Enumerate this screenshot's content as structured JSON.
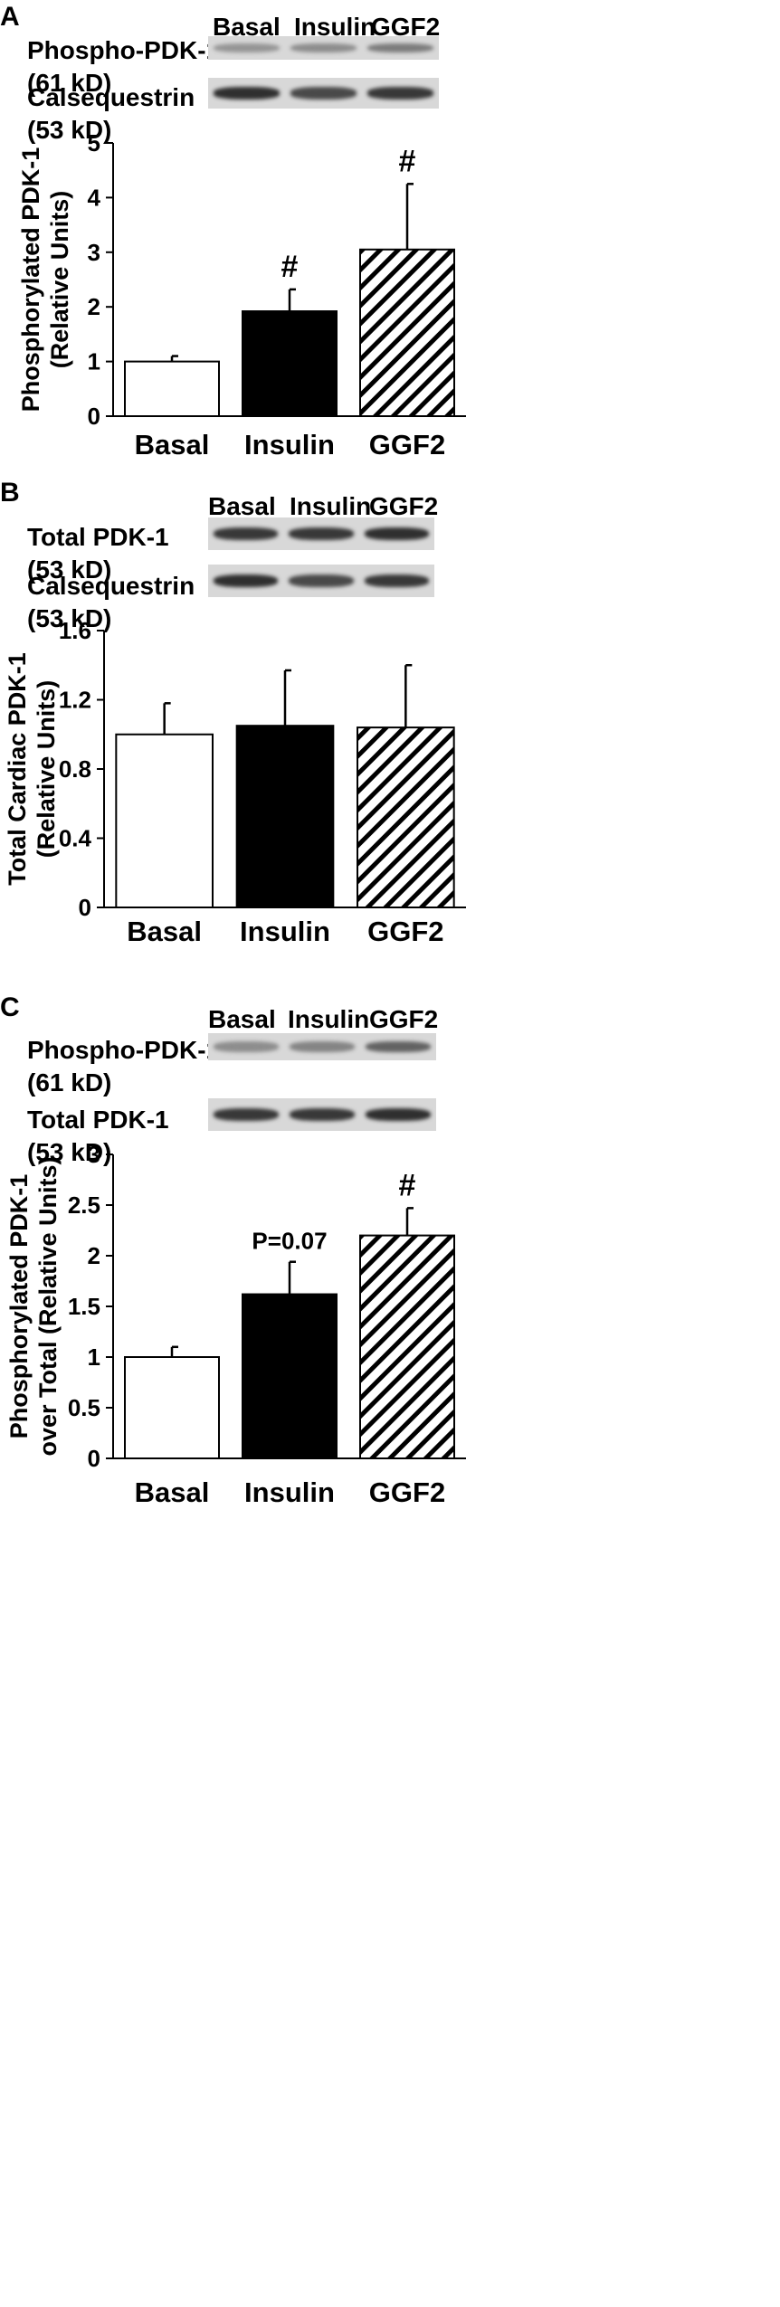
{
  "lanes": [
    "Basal",
    "Insulin",
    "GGF2"
  ],
  "panels": [
    {
      "letter": "A",
      "blots": [
        {
          "label": "Phospho-PDK-1",
          "size": "(61 kD)",
          "intensity": [
            0.3,
            0.35,
            0.45
          ]
        },
        {
          "label": "Calsequestrin",
          "size": "(53 kD)",
          "intensity": [
            0.9,
            0.75,
            0.85
          ]
        }
      ],
      "chart_data": {
        "type": "bar",
        "categories": [
          "Basal",
          "Insulin",
          "GGF2"
        ],
        "values": [
          1.0,
          1.92,
          3.05
        ],
        "errors": [
          0.1,
          0.4,
          1.2
        ],
        "fills": [
          "white",
          "black",
          "hatch"
        ],
        "annotations": [
          "",
          "#",
          "#"
        ],
        "ylabel_line1": "Phosphorylated PDK-1",
        "ylabel_line2": "(Relative Units)",
        "ylim": [
          0,
          5
        ],
        "yticks": [
          0,
          1,
          2,
          3,
          4,
          5
        ],
        "ytick_labels": [
          "0",
          "1",
          "2",
          "3",
          "4",
          "5"
        ]
      }
    },
    {
      "letter": "B",
      "blots": [
        {
          "label": "Total PDK-1",
          "size": "(53 kD)",
          "intensity": [
            0.85,
            0.85,
            0.9
          ]
        },
        {
          "label": "Calsequestrin",
          "size": "(53 kD)",
          "intensity": [
            0.9,
            0.75,
            0.85
          ]
        }
      ],
      "chart_data": {
        "type": "bar",
        "categories": [
          "Basal",
          "Insulin",
          "GGF2"
        ],
        "values": [
          1.0,
          1.05,
          1.04
        ],
        "errors": [
          0.18,
          0.32,
          0.36
        ],
        "fills": [
          "white",
          "black",
          "hatch"
        ],
        "annotations": [
          "",
          "",
          ""
        ],
        "ylabel_line1": "Total Cardiac PDK-1",
        "ylabel_line2": "(Relative Units)",
        "ylim": [
          0,
          1.6
        ],
        "yticks": [
          0,
          0.4,
          0.8,
          1.2,
          1.6
        ],
        "ytick_labels": [
          "0",
          "0.4",
          "0.8",
          "1.2",
          "1.6"
        ]
      }
    },
    {
      "letter": "C",
      "blots": [
        {
          "label": "Phospho-PDK-1",
          "size": "(61 kD)",
          "intensity": [
            0.35,
            0.4,
            0.6
          ]
        },
        {
          "label": "Total PDK-1",
          "size": "(53 kD)",
          "intensity": [
            0.85,
            0.85,
            0.9
          ]
        }
      ],
      "chart_data": {
        "type": "bar",
        "categories": [
          "Basal",
          "Insulin",
          "GGF2"
        ],
        "values": [
          1.0,
          1.62,
          2.2
        ],
        "errors": [
          0.1,
          0.32,
          0.27
        ],
        "fills": [
          "white",
          "black",
          "hatch"
        ],
        "annotations": [
          "",
          "P=0.07",
          "#"
        ],
        "ylabel_line1": "Phosphorylated PDK-1",
        "ylabel_line2": "over Total (Relative Units)",
        "ylim": [
          0,
          3
        ],
        "yticks": [
          0,
          0.5,
          1,
          1.5,
          2,
          2.5,
          3
        ],
        "ytick_labels": [
          "0",
          "0.5",
          "1",
          "1.5",
          "2",
          "2.5",
          "3"
        ]
      }
    }
  ]
}
